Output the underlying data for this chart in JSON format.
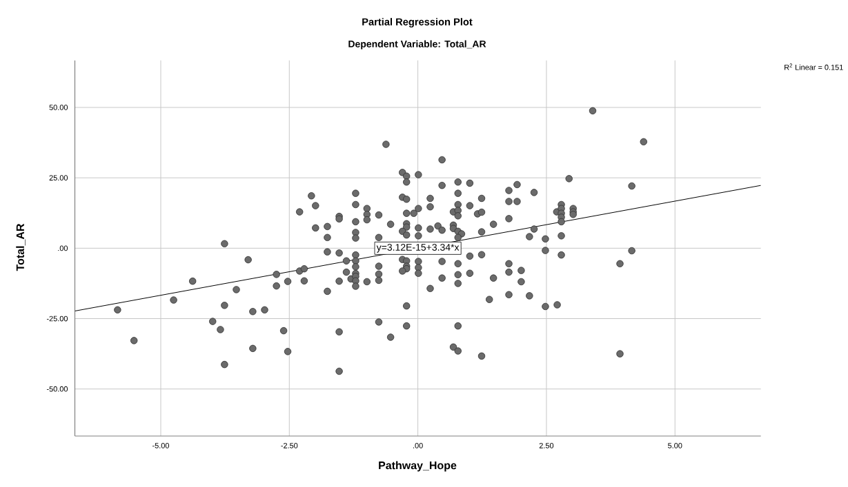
{
  "chart_data": {
    "type": "scatter",
    "title": "Partial Regression Plot",
    "subtitle": "Dependent Variable: Total_AR",
    "xlabel": "Pathway_Hope",
    "ylabel": "Total_AR",
    "annotations": [
      "R$^{2}$ Linear = 0.151",
      {
        "text": "y=3.12E-15+3.34*x",
        "x": 0,
        "y": 0
      }
    ],
    "xlim": [
      -6.67,
      6.67
    ],
    "ylim": [
      -66.7,
      66.7
    ],
    "xticks": [
      {
        "value": -5,
        "label": "-5.00"
      },
      {
        "value": -2.5,
        "label": "-2.50"
      },
      {
        "value": 0,
        "label": ".00"
      },
      {
        "value": 2.5,
        "label": "2.50"
      },
      {
        "value": 5,
        "label": "5.00"
      }
    ],
    "yticks": [
      {
        "value": -50,
        "label": "-50.00"
      },
      {
        "value": -25,
        "label": "-25.00"
      },
      {
        "value": 0,
        "label": ".00"
      },
      {
        "value": 25,
        "label": "25.00"
      },
      {
        "value": 50,
        "label": "50.00"
      }
    ],
    "grid": true,
    "series": [
      {
        "color": "#6b6b6b",
        "marker": "circle",
        "x": [
          -5.84,
          -5.52,
          -4.75,
          -4.38,
          -3.76,
          -3.3,
          -3.53,
          -3.76,
          -3.99,
          -3.84,
          -3.76,
          -3.21,
          -3.21,
          -2.98,
          -2.75,
          -2.75,
          -2.53,
          -2.61,
          -2.53,
          -2.3,
          -2.3,
          -2.21,
          -2.21,
          -2.07,
          -1.99,
          -1.99,
          -1.76,
          -1.76,
          -1.76,
          -1.76,
          -1.53,
          -1.53,
          -1.53,
          -1.53,
          -1.53,
          -1.53,
          -1.39,
          -1.39,
          -1.3,
          -1.21,
          -1.21,
          -1.21,
          -1.21,
          -1.21,
          -1.21,
          -1.21,
          -1.21,
          -1.21,
          -1.21,
          -1.21,
          -1.21,
          -0.99,
          -0.99,
          -0.99,
          -0.99,
          -0.76,
          -0.76,
          -0.76,
          -0.76,
          -0.76,
          -0.76,
          -0.62,
          -0.53,
          -0.53,
          -0.3,
          -0.22,
          -0.22,
          -0.3,
          -0.22,
          -0.22,
          -0.22,
          -0.22,
          -0.3,
          -0.22,
          -0.3,
          -0.22,
          -0.22,
          -0.22,
          -0.3,
          -0.22,
          -0.22,
          -0.08,
          0.01,
          0.01,
          0.01,
          0.01,
          0.01,
          0.01,
          0.01,
          0.24,
          0.24,
          0.24,
          0.24,
          0.47,
          0.47,
          0.39,
          0.47,
          0.47,
          0.47,
          0.78,
          0.78,
          0.78,
          0.69,
          0.78,
          0.78,
          0.69,
          0.69,
          0.78,
          0.85,
          0.78,
          0.78,
          0.78,
          0.78,
          0.78,
          0.69,
          0.78,
          1.01,
          1.01,
          1.01,
          1.01,
          1.16,
          1.24,
          1.24,
          1.24,
          1.24,
          1.24,
          1.39,
          1.47,
          1.47,
          1.77,
          1.77,
          1.93,
          1.93,
          1.77,
          1.77,
          1.77,
          1.77,
          2.01,
          2.01,
          2.26,
          2.26,
          2.17,
          2.17,
          2.48,
          2.48,
          2.48,
          2.71,
          2.7,
          2.79,
          2.79,
          2.79,
          2.79,
          2.79,
          2.79,
          2.79,
          2.94,
          3.02,
          3.02,
          3.02,
          3.4,
          4.16,
          4.16,
          3.93,
          3.93,
          4.39
        ],
        "values": [
          -21.9,
          -32.8,
          -18.4,
          -11.7,
          1.6,
          -4.1,
          -14.7,
          -20.3,
          -26.0,
          -28.9,
          -41.3,
          -22.5,
          -35.6,
          -21.9,
          -9.3,
          -13.4,
          -11.8,
          -29.3,
          -36.7,
          12.9,
          -8.1,
          -7.3,
          -11.6,
          18.6,
          15.1,
          7.2,
          7.7,
          3.8,
          -1.3,
          -15.3,
          11.3,
          10.4,
          -1.7,
          -11.7,
          -29.7,
          -43.7,
          -4.5,
          -8.5,
          -10.9,
          19.5,
          15.5,
          9.4,
          5.6,
          3.6,
          -2.4,
          -4.5,
          -6.6,
          -9.0,
          -10.0,
          -11.6,
          -13.5,
          14.1,
          12.0,
          10.1,
          -11.9,
          11.8,
          3.8,
          -6.4,
          -9.2,
          -11.4,
          -26.2,
          36.9,
          8.5,
          -31.6,
          26.9,
          25.6,
          23.5,
          18.1,
          17.4,
          12.4,
          8.7,
          7.5,
          6.0,
          4.7,
          -4.0,
          -4.5,
          -6.4,
          -7.3,
          -8.1,
          -20.5,
          -27.6,
          12.4,
          26.1,
          14.1,
          7.2,
          4.4,
          -4.7,
          -6.9,
          -8.9,
          17.7,
          14.7,
          6.8,
          -14.3,
          31.4,
          22.3,
          7.9,
          6.4,
          -4.7,
          -10.6,
          23.5,
          19.5,
          15.5,
          12.9,
          13.4,
          11.5,
          8.2,
          7.0,
          6.0,
          5.1,
          3.8,
          -5.5,
          -9.4,
          -12.5,
          -27.6,
          -35.1,
          -36.5,
          23.1,
          15.1,
          -2.8,
          -8.9,
          12.2,
          17.7,
          12.8,
          5.8,
          -2.3,
          -38.3,
          -18.2,
          8.5,
          -10.6,
          20.5,
          16.6,
          22.6,
          16.6,
          10.5,
          -5.5,
          -8.5,
          -16.5,
          -7.9,
          -11.9,
          19.8,
          6.8,
          4.1,
          -16.9,
          3.3,
          -0.8,
          -20.7,
          -20.1,
          12.9,
          15.5,
          14.1,
          12.4,
          11.0,
          9.4,
          4.4,
          -2.4,
          24.7,
          14.1,
          12.9,
          12.0,
          48.8,
          22.1,
          -0.9,
          -5.5,
          -37.5,
          37.8
        ]
      },
      {
        "type": "line",
        "marker": "none",
        "color": "#000000",
        "x": [
          -6.67,
          6.67
        ],
        "values": [
          -22.3,
          22.3
        ]
      }
    ]
  }
}
